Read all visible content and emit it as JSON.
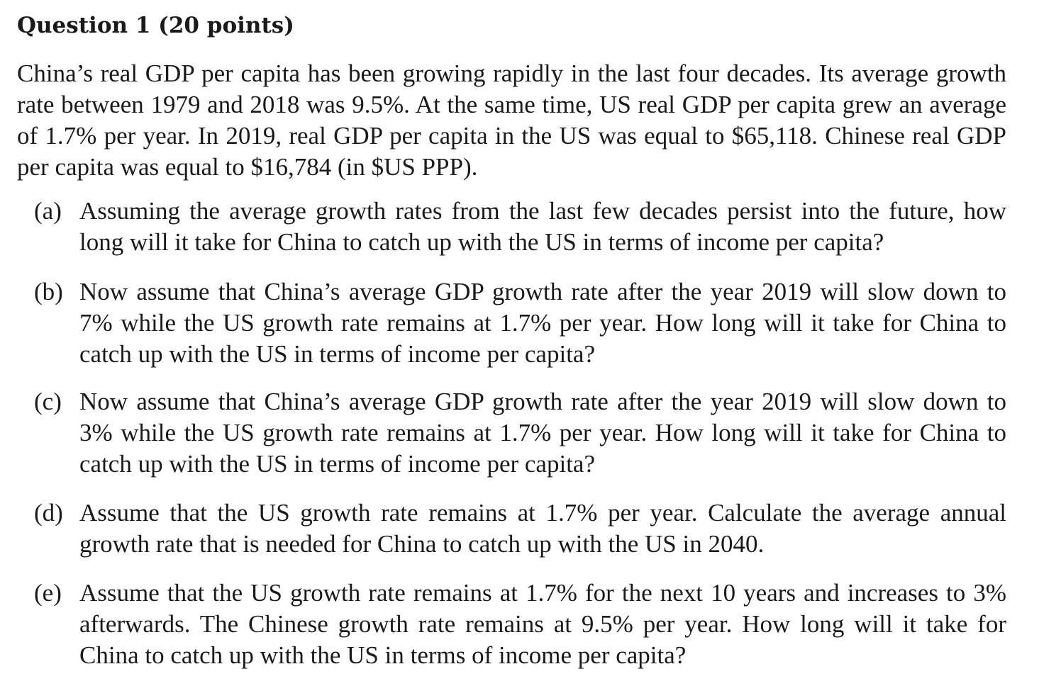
{
  "question": {
    "heading": "Question 1 (20 points)",
    "intro": "China’s real GDP per capita has been growing rapidly in the last four decades. Its average growth rate between 1979 and 2018 was 9.5%. At the same time, US real GDP per capita grew an average of 1.7% per year. In 2019, real GDP per capita in the US was equal to $65,118. Chinese real GDP per capita was equal to $16,784 (in $US PPP).",
    "parts": [
      {
        "label": "(a)",
        "text": "Assuming the average growth rates from the last few decades persist into the future, how long will it take for China to catch up with the US in terms of income per capita?"
      },
      {
        "label": "(b)",
        "text": "Now assume that China’s average GDP growth rate after the year 2019 will slow down to 7% while the US growth rate remains at 1.7% per year. How long will it take for China to catch up with the US in terms of income per capita?"
      },
      {
        "label": "(c)",
        "text": "Now assume that China’s average GDP growth rate after the year 2019 will slow down to 3% while the US growth rate remains at 1.7% per year. How long will it take for China to catch up with the US in terms of income per capita?"
      },
      {
        "label": "(d)",
        "text": "Assume that the US growth rate remains at 1.7% per year. Calculate the average annual growth rate that is needed for China to catch up with the US in 2040."
      },
      {
        "label": "(e)",
        "text": "Assume that the US growth rate remains at 1.7% for the next 10 years and increases to 3% afterwards. The Chinese growth rate remains at 9.5% per year. How long will it take for China to catch up with the US in terms of income per capita?"
      }
    ]
  }
}
